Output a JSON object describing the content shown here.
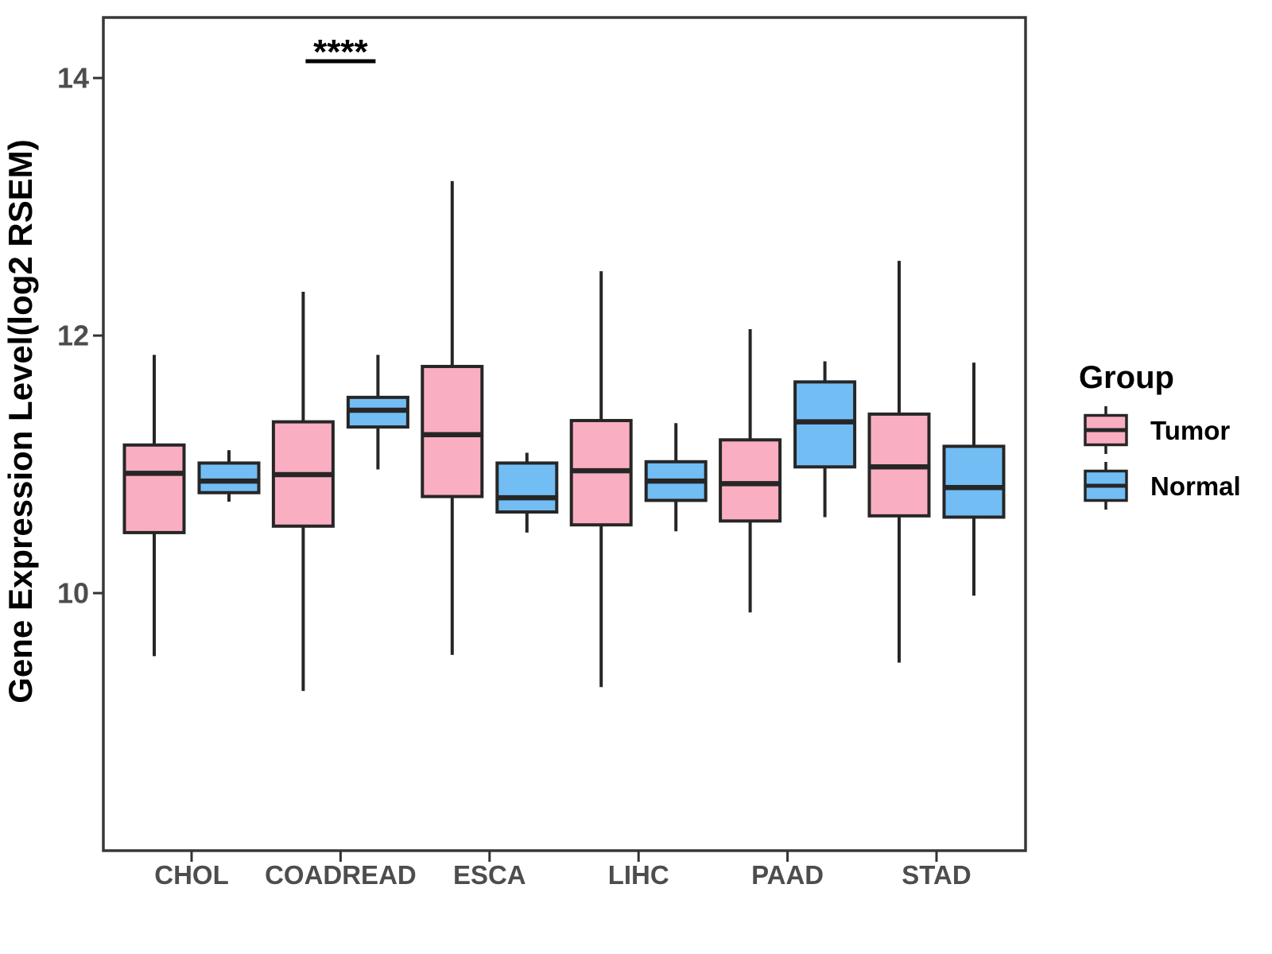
{
  "chart_data": {
    "type": "boxplot",
    "title": "",
    "ylabel": "Gene Expression Level(log2 RSEM)",
    "xlabel": "",
    "categories": [
      "CHOL",
      "COADREAD",
      "ESCA",
      "LIHC",
      "PAAD",
      "STAD"
    ],
    "y_ticks": [
      10,
      12,
      14
    ],
    "ylim": [
      8.0,
      14.47
    ],
    "grid": false,
    "legend": {
      "title": "Group",
      "position": "right"
    },
    "groups": [
      {
        "name": "Tumor",
        "fill": "#FAAEC1"
      },
      {
        "name": "Normal",
        "fill": "#72BDF4"
      }
    ],
    "series": [
      {
        "name": "Tumor",
        "boxes": [
          {
            "category": "CHOL",
            "whisker_low": 9.51,
            "q1": 10.47,
            "median": 10.93,
            "q3": 11.15,
            "whisker_high": 11.85
          },
          {
            "category": "COADREAD",
            "whisker_low": 9.24,
            "q1": 10.52,
            "median": 10.92,
            "q3": 11.33,
            "whisker_high": 12.34
          },
          {
            "category": "ESCA",
            "whisker_low": 9.52,
            "q1": 10.75,
            "median": 11.23,
            "q3": 11.76,
            "whisker_high": 13.2
          },
          {
            "category": "LIHC",
            "whisker_low": 9.27,
            "q1": 10.53,
            "median": 10.95,
            "q3": 11.34,
            "whisker_high": 12.5
          },
          {
            "category": "PAAD",
            "whisker_low": 9.85,
            "q1": 10.56,
            "median": 10.85,
            "q3": 11.19,
            "whisker_high": 12.05
          },
          {
            "category": "STAD",
            "whisker_low": 9.46,
            "q1": 10.6,
            "median": 10.98,
            "q3": 11.39,
            "whisker_high": 12.58
          }
        ]
      },
      {
        "name": "Normal",
        "boxes": [
          {
            "category": "CHOL",
            "whisker_low": 10.71,
            "q1": 10.78,
            "median": 10.87,
            "q3": 11.01,
            "whisker_high": 11.11
          },
          {
            "category": "COADREAD",
            "whisker_low": 10.96,
            "q1": 11.29,
            "median": 11.42,
            "q3": 11.52,
            "whisker_high": 11.85
          },
          {
            "category": "ESCA",
            "whisker_low": 10.47,
            "q1": 10.63,
            "median": 10.74,
            "q3": 11.01,
            "whisker_high": 11.09
          },
          {
            "category": "LIHC",
            "whisker_low": 10.48,
            "q1": 10.72,
            "median": 10.87,
            "q3": 11.02,
            "whisker_high": 11.32
          },
          {
            "category": "PAAD",
            "whisker_low": 10.59,
            "q1": 10.98,
            "median": 11.33,
            "q3": 11.64,
            "whisker_high": 11.8
          },
          {
            "category": "STAD",
            "whisker_low": 9.98,
            "q1": 10.59,
            "median": 10.82,
            "q3": 11.14,
            "whisker_high": 11.79
          }
        ]
      }
    ],
    "annotations": [
      {
        "type": "significance",
        "category": "COADREAD",
        "label": "****"
      }
    ],
    "colors": {
      "box_border": "#262626",
      "panel_border": "#383838",
      "axis_text": "#4D4D4D",
      "annotation": "#000000"
    }
  }
}
